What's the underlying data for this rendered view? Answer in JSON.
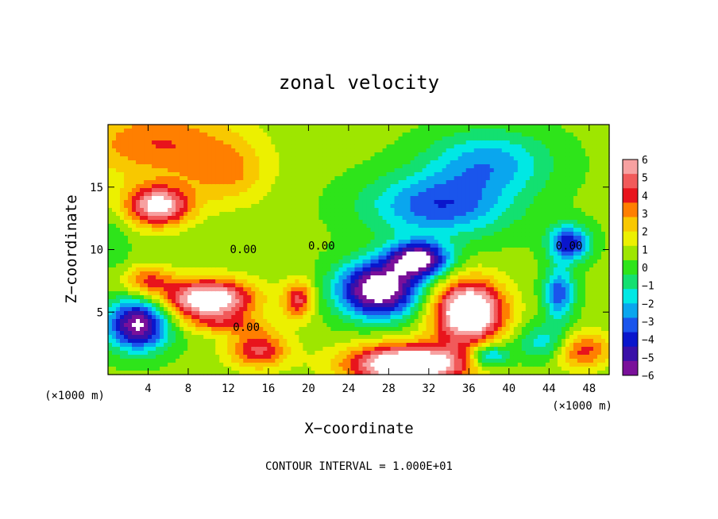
{
  "chart_data": {
    "type": "heatmap",
    "title": "zonal velocity",
    "xlabel": "X−coordinate",
    "ylabel": "Z−coordinate",
    "x_unit": "(×1000 m)",
    "y_unit": "(×1000 m)",
    "footer": "CONTOUR INTERVAL = 1.000E+01",
    "xlim": [
      0,
      50
    ],
    "ylim": [
      0,
      20
    ],
    "x_ticks": [
      4,
      8,
      12,
      16,
      20,
      24,
      28,
      32,
      36,
      40,
      44,
      48
    ],
    "y_ticks": [
      5,
      10,
      15
    ],
    "colorbar": {
      "ticks": [
        6,
        5,
        4,
        3,
        2,
        1,
        0,
        -1,
        -2,
        -3,
        -4,
        -5,
        -6
      ],
      "colors": [
        "#f7a1a1",
        "#f15a5a",
        "#e8141c",
        "#ff7f00",
        "#f8c800",
        "#ecf000",
        "#9ee600",
        "#2ee41a",
        "#13e070",
        "#00e8e4",
        "#0aa6ee",
        "#1a55ec",
        "#0a16cc",
        "#3a10a8",
        "#7a109a"
      ]
    },
    "contour_labels": [
      {
        "x": 13.5,
        "y": 9.7,
        "text": "0.00"
      },
      {
        "x": 21.3,
        "y": 10.0,
        "text": "0.00"
      },
      {
        "x": 46.0,
        "y": 10.0,
        "text": "0.00"
      },
      {
        "x": 13.8,
        "y": 3.5,
        "text": "0.00"
      }
    ],
    "features": [
      {
        "x": 5,
        "y": 13.5,
        "v": 6,
        "sx": 3.2,
        "sy": 1.6
      },
      {
        "x": 5,
        "y": 18.5,
        "v": 3,
        "sx": 8,
        "sy": 3
      },
      {
        "x": 12,
        "y": 16,
        "v": 2,
        "sx": 4,
        "sy": 2.5
      },
      {
        "x": 10,
        "y": 6.0,
        "v": 7,
        "sx": 4.5,
        "sy": 1.6
      },
      {
        "x": 4,
        "y": 7.5,
        "v": 3,
        "sx": 2.5,
        "sy": 1.2
      },
      {
        "x": 15,
        "y": 2.0,
        "v": 4,
        "sx": 3,
        "sy": 1.5
      },
      {
        "x": 19,
        "y": 6.0,
        "v": 4,
        "sx": 1.5,
        "sy": 1.5
      },
      {
        "x": 30,
        "y": 0.8,
        "v": 8,
        "sx": 6,
        "sy": 1.6
      },
      {
        "x": 36,
        "y": 5.0,
        "v": 8,
        "sx": 3.5,
        "sy": 2.5
      },
      {
        "x": 47,
        "y": 2.0,
        "v": 4,
        "sx": 3,
        "sy": 1.5
      },
      {
        "x": 38,
        "y": 1.5,
        "v": -4,
        "sx": 2,
        "sy": 1
      },
      {
        "x": 3,
        "y": 4.0,
        "v": -7,
        "sx": 3,
        "sy": 2
      },
      {
        "x": 27,
        "y": 6.8,
        "v": -8,
        "sx": 4,
        "sy": 2.2
      },
      {
        "x": 31,
        "y": 9.2,
        "v": -7,
        "sx": 3,
        "sy": 1.4
      },
      {
        "x": 33,
        "y": 13.5,
        "v": -4,
        "sx": 7,
        "sy": 2.5
      },
      {
        "x": 38,
        "y": 17,
        "v": -3,
        "sx": 6,
        "sy": 2.5
      },
      {
        "x": 46,
        "y": 10.5,
        "v": -5,
        "sx": 2,
        "sy": 1.4
      },
      {
        "x": 45,
        "y": 6.5,
        "v": -4,
        "sx": 1.5,
        "sy": 2
      },
      {
        "x": 44,
        "y": 2.5,
        "v": -3,
        "sx": 3,
        "sy": 1.5
      },
      {
        "x": 0.5,
        "y": 10.5,
        "v": -1,
        "sx": 1.5,
        "sy": 2
      },
      {
        "x": 12,
        "y": 4.0,
        "v": 2,
        "sx": 4,
        "sy": 0.8
      }
    ]
  }
}
